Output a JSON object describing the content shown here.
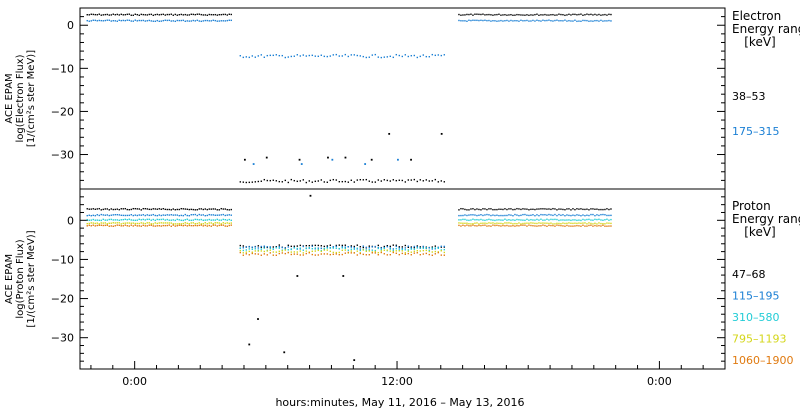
{
  "chart_data": [
    {
      "type": "scatter",
      "panel": "electron",
      "ylabel": [
        "ACE EPAM",
        "log(Electron Flux)",
        "[1/(cm²s ster MeV)]"
      ],
      "yticks": [
        "0",
        "−10",
        "−20",
        "−30"
      ],
      "ylim": [
        -38,
        4
      ],
      "legend_header": [
        "Electron",
        "Energy range",
        "[keV]"
      ],
      "series": [
        {
          "name": "38–53",
          "color": "#000000",
          "segments": [
            {
              "x": [
                -2.2,
                4.4
              ],
              "y": 2.6
            },
            {
              "x": [
                4.8,
                14.2
              ],
              "y": -36
            },
            {
              "x": [
                14.8,
                21.8
              ],
              "y": 2.6
            }
          ],
          "scattered": [
            [
              5.0,
              -31
            ],
            [
              6.0,
              -30.5
            ],
            [
              7.5,
              -31
            ],
            [
              8.8,
              -30.5
            ],
            [
              9.6,
              -30.5
            ],
            [
              10.8,
              -31
            ],
            [
              11.6,
              -25
            ],
            [
              12.6,
              -31
            ],
            [
              14.0,
              -25
            ]
          ]
        },
        {
          "name": "175–315",
          "color": "#1a7fd4",
          "segments": [
            {
              "x": [
                -2.2,
                4.4
              ],
              "y": 1.2
            },
            {
              "x": [
                4.8,
                14.2
              ],
              "y": -7
            },
            {
              "x": [
                14.8,
                21.8
              ],
              "y": 1.2
            }
          ],
          "scattered": [
            [
              5.4,
              -32
            ],
            [
              7.6,
              -32
            ],
            [
              9.0,
              -31
            ],
            [
              10.5,
              -32
            ],
            [
              12.0,
              -31
            ]
          ]
        }
      ]
    },
    {
      "type": "scatter",
      "panel": "proton",
      "ylabel": [
        "ACE EPAM",
        "log(Proton Flux)",
        "[1/(cm²s ster MeV)]"
      ],
      "yticks": [
        "0",
        "−10",
        "−20",
        "−30"
      ],
      "ylim": [
        -38,
        8
      ],
      "legend_header": [
        "Proton",
        "Energy range",
        "[keV]"
      ],
      "series": [
        {
          "name": "47–68",
          "color": "#000000",
          "segments": [
            {
              "x": [
                -2.2,
                4.4
              ],
              "y": 3
            },
            {
              "x": [
                4.8,
                14.2
              ],
              "y": -6.5
            },
            {
              "x": [
                14.8,
                21.8
              ],
              "y": 3
            }
          ],
          "scattered": [
            [
              5.2,
              -31.5
            ],
            [
              5.6,
              -25
            ],
            [
              6.8,
              -33.5
            ],
            [
              7.4,
              -14
            ],
            [
              8.0,
              6.5
            ],
            [
              9.5,
              -14
            ],
            [
              10.0,
              -35.5
            ]
          ]
        },
        {
          "name": "115–195",
          "color": "#1a7fd4",
          "segments": [
            {
              "x": [
                -2.2,
                4.4
              ],
              "y": 1.5
            },
            {
              "x": [
                4.8,
                14.2
              ],
              "y": -6.8
            },
            {
              "x": [
                14.8,
                21.8
              ],
              "y": 1.5
            }
          ],
          "scattered": []
        },
        {
          "name": "310–580",
          "color": "#22ccd6",
          "segments": [
            {
              "x": [
                -2.2,
                4.4
              ],
              "y": 0.3
            },
            {
              "x": [
                4.8,
                14.2
              ],
              "y": -7.2
            },
            {
              "x": [
                14.8,
                21.8
              ],
              "y": 0.3
            }
          ],
          "scattered": []
        },
        {
          "name": "795–1193",
          "color": "#d4d61a",
          "segments": [
            {
              "x": [
                -2.2,
                4.4
              ],
              "y": -0.6
            },
            {
              "x": [
                4.8,
                14.2
              ],
              "y": -7.8
            },
            {
              "x": [
                14.8,
                21.8
              ],
              "y": -0.6
            }
          ],
          "scattered": []
        },
        {
          "name": "1060–1900",
          "color": "#e07a10",
          "segments": [
            {
              "x": [
                -2.2,
                4.4
              ],
              "y": -1.2
            },
            {
              "x": [
                4.8,
                14.2
              ],
              "y": -8.4
            },
            {
              "x": [
                14.8,
                21.8
              ],
              "y": -1.2
            }
          ],
          "scattered": []
        }
      ]
    }
  ],
  "x_axis": {
    "range_hours": [
      -2.5,
      27
    ],
    "tick_labels": [
      {
        "hour": 0,
        "label": "0:00"
      },
      {
        "hour": 12,
        "label": "12:00"
      },
      {
        "hour": 24,
        "label": "0:00"
      }
    ],
    "title": "hours:minutes, May 11, 2016 – May 13, 2016"
  }
}
